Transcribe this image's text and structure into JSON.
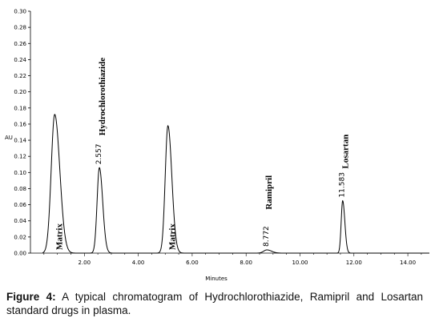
{
  "chart_data": {
    "type": "line",
    "xlabel": "Minutes",
    "ylabel": "AU",
    "xlim": [
      0,
      14.8
    ],
    "ylim": [
      0,
      0.3
    ],
    "x_ticks": [
      "2.00",
      "4.00",
      "6.00",
      "8.00",
      "10.00",
      "12.00",
      "14.00"
    ],
    "y_ticks": [
      "0.00",
      "0.02",
      "0.04",
      "0.06",
      "0.08",
      "0.10",
      "0.12",
      "0.14",
      "0.16",
      "0.18",
      "0.20",
      "0.22",
      "0.24",
      "0.26",
      "0.28",
      "0.30"
    ],
    "grid": false,
    "peaks": [
      {
        "name": "Matrix",
        "retention_time": 0.9,
        "height": 0.172,
        "retention_label": ""
      },
      {
        "name": "Hydrochlorothiazide",
        "retention_time": 2.557,
        "height": 0.106,
        "retention_label": "2.557"
      },
      {
        "name": "Matrix",
        "retention_time": 5.1,
        "height": 0.158,
        "retention_label": ""
      },
      {
        "name": "Ramipril",
        "retention_time": 8.772,
        "height": 0.004,
        "retention_label": "8.772"
      },
      {
        "name": "Losartan",
        "retention_time": 11.583,
        "height": 0.065,
        "retention_label": "11.583"
      }
    ]
  },
  "caption": {
    "lead": "Figure 4:",
    "text": " A typical chromatogram of Hydrochlorothiazide, Ramipril and Losartan standard drugs in plasma."
  }
}
